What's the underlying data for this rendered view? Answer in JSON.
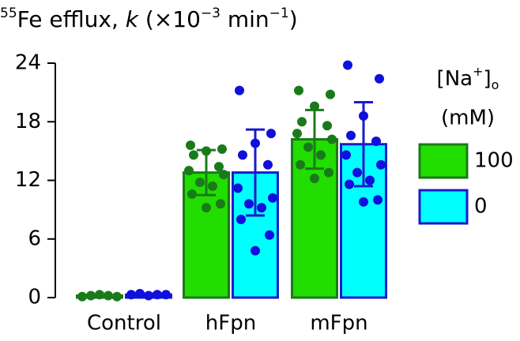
{
  "chart_data": {
    "type": "bar",
    "y_label": [
      "55",
      "Fe efflux, ",
      "k",
      " (×10",
      "−3",
      " min",
      "−1",
      ")"
    ],
    "categories": [
      "Control",
      "hFpn",
      "mFpn"
    ],
    "ylim": [
      0,
      24
    ],
    "yticks": [
      0,
      6,
      12,
      18,
      24
    ],
    "legend_title": [
      "[Na",
      "+",
      "]",
      "o",
      "(mM)"
    ],
    "series": [
      {
        "name": "100",
        "color": "#22dd00",
        "edge_color": "#1a7a1a",
        "point_color": "#1a7a1a",
        "values": [
          0.2,
          12.8,
          16.2
        ],
        "errors": [
          0.1,
          2.3,
          3.0
        ],
        "points": [
          [
            0.1,
            0.2,
            0.3,
            0.2,
            0.1
          ],
          [
            15.6,
            15.2,
            15.0,
            14.6,
            13.4,
            13.0,
            12.6,
            11.8,
            11.4,
            10.6,
            9.6,
            9.2
          ],
          [
            21.2,
            20.8,
            19.6,
            18.0,
            17.6,
            16.8,
            16.2,
            15.4,
            14.6,
            13.6,
            12.8,
            12.2
          ]
        ]
      },
      {
        "name": "0",
        "color": "#00ffff",
        "edge_color": "#1a1acc",
        "point_color": "#1010dd",
        "values": [
          0.3,
          12.8,
          15.7
        ],
        "errors": [
          0.1,
          4.4,
          4.3
        ],
        "points": [
          [
            0.3,
            0.4,
            0.2,
            0.3,
            0.3
          ],
          [
            21.2,
            16.8,
            15.8,
            14.6,
            13.6,
            11.2,
            10.2,
            9.6,
            9.2,
            8.0,
            6.4,
            4.8
          ],
          [
            23.8,
            22.4,
            18.6,
            16.6,
            16.0,
            14.6,
            13.6,
            12.8,
            12.0,
            11.6,
            10.0,
            9.8
          ]
        ]
      }
    ]
  }
}
